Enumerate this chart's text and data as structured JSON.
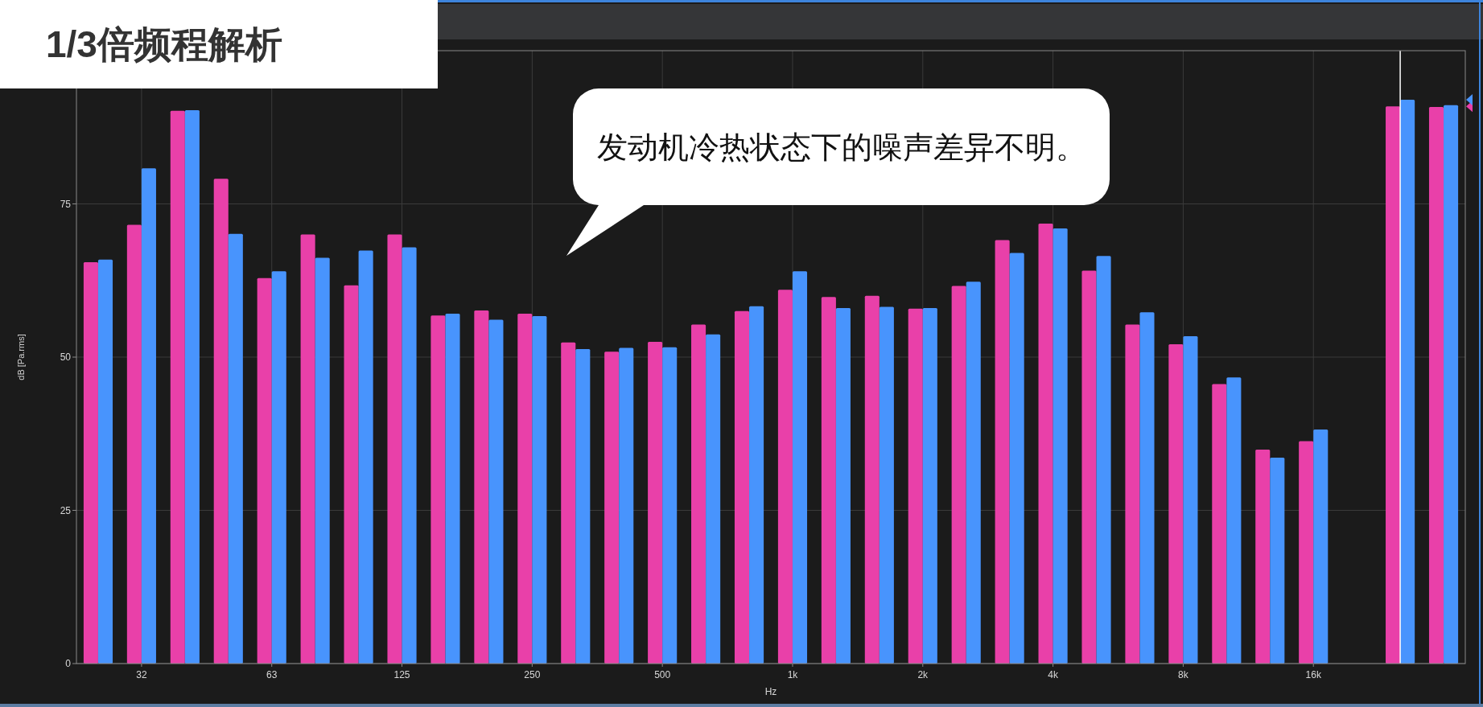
{
  "chart_data": {
    "type": "bar",
    "title": "1/3倍频程解析",
    "xlabel": "Hz",
    "ylabel": "dB [Pa.rms]",
    "categories": [
      null,
      "32",
      null,
      null,
      "63",
      null,
      null,
      "125",
      null,
      null,
      "250",
      null,
      null,
      "500",
      null,
      null,
      "1k",
      null,
      null,
      "2k",
      null,
      null,
      "4k",
      null,
      null,
      "8k",
      null,
      null,
      "16k",
      null,
      null,
      null
    ],
    "series": [
      {
        "color": "#e940a9",
        "values": [
          65.5,
          71.6,
          90.2,
          79.1,
          62.9,
          70.0,
          61.7,
          70.0,
          56.8,
          57.6,
          57.1,
          52.4,
          50.9,
          52.5,
          55.3,
          57.5,
          61.0,
          59.8,
          60.0,
          57.9,
          61.6,
          69.1,
          71.8,
          64.1,
          55.3,
          52.1,
          45.6,
          34.9,
          36.3,
          null,
          90.9,
          90.8
        ]
      },
      {
        "color": "#4894fd",
        "values": [
          65.9,
          80.8,
          90.3,
          70.1,
          64.0,
          66.2,
          67.4,
          67.9,
          57.1,
          56.1,
          56.7,
          51.3,
          51.5,
          51.6,
          53.7,
          58.3,
          64.0,
          58.0,
          58.2,
          58.0,
          62.3,
          67.0,
          71.0,
          66.5,
          57.3,
          53.4,
          46.7,
          33.6,
          38.2,
          null,
          92.0,
          91.1
        ]
      }
    ],
    "ylim": [
      0,
      100
    ],
    "yticks": [
      0,
      25,
      50,
      75
    ],
    "grid": true,
    "annotations": [
      "发动机冷热状态下的噪声差异不明。"
    ]
  }
}
